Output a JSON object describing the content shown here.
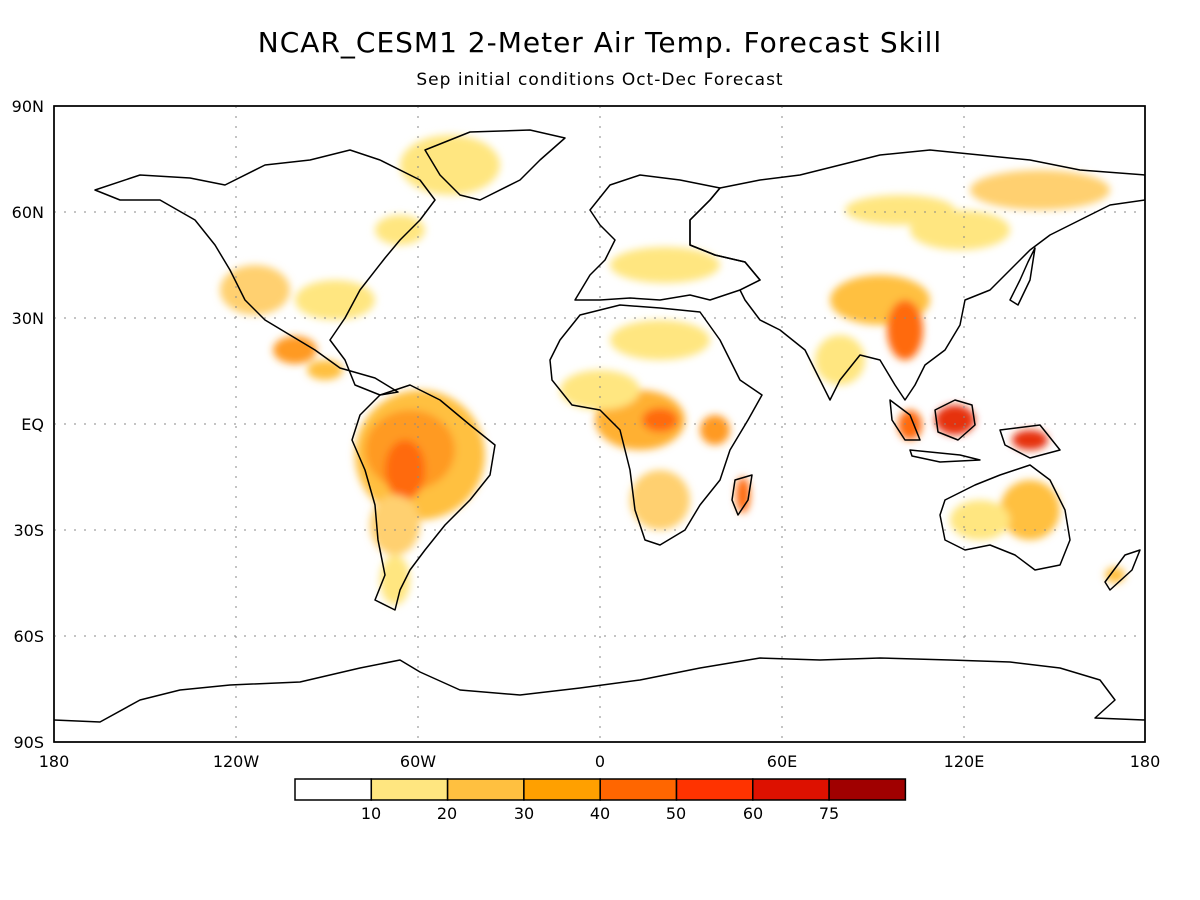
{
  "title": "NCAR_CESM1 2-Meter Air Temp. Forecast Skill",
  "subtitle": "Sep initial conditions  Oct-Dec Forecast",
  "map": {
    "projection": "equirectangular",
    "lon_range": [
      -180,
      180
    ],
    "lat_range": [
      -90,
      90
    ],
    "grid": "dotted",
    "lat_ticks": [
      "90N",
      "60N",
      "30N",
      "EQ",
      "30S",
      "60S",
      "90S"
    ],
    "lon_ticks": [
      "180",
      "120W",
      "60W",
      "0",
      "60E",
      "120E",
      "180"
    ]
  },
  "colorbar": {
    "labels": [
      "10",
      "20",
      "30",
      "40",
      "50",
      "60",
      "75"
    ],
    "colors": [
      "#ffffff",
      "#ffe680",
      "#ffc040",
      "#ffa000",
      "#ff6600",
      "#ff3300",
      "#dd1100",
      "#a00000"
    ]
  }
}
